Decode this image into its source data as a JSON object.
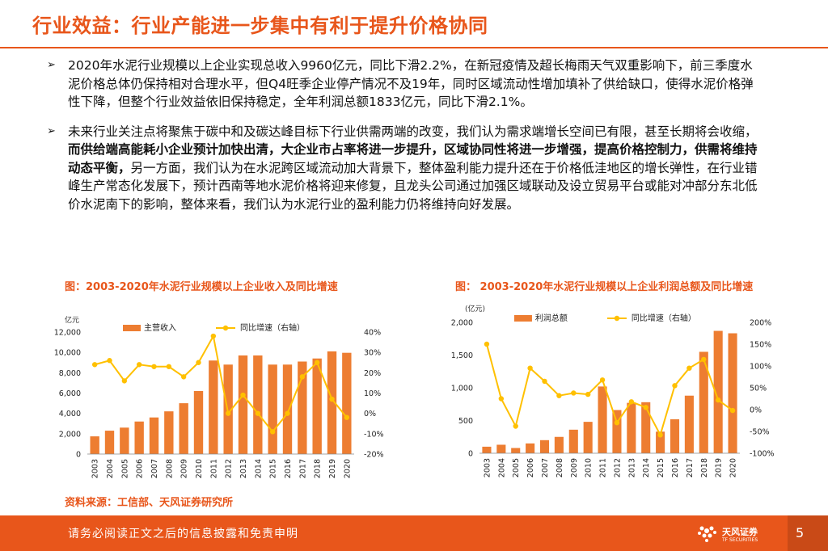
{
  "title": "行业效益：行业产能进一步集中有利于提升价格协同",
  "bullets": [
    {
      "text": "2020年水泥行业规模以上企业实现总收入9960亿元，同比下滑2.2%，在新冠疫情及超长梅雨天气双重影响下，前三季度水泥价格总体仍保持相对合理水平，但Q4旺季企业停产情况不及19年，同时区域流动性增加填补了供给缺口，使得水泥价格弹性下降，但整个行业效益依旧保持稳定，全年利润总额1833亿元，同比下滑2.1%。"
    },
    {
      "pre": "未来行业关注点将聚焦于碳中和及碳达峰目标下行业供需两端的改变，我们认为需求端增长空间已有限，甚至长期将会收缩，",
      "bold": "而供给端高能耗小企业预计加快出清，大企业市占率将进一步提升，区域协同性将进一步增强，提高价格控制力，供需将维持动态平衡，",
      "post": "另一方面，我们认为在水泥跨区域流动加大背景下，整体盈利能力提升还在于价格低洼地区的增长弹性，在行业错峰生产常态化发展下，预计西南等地水泥价格将迎来修复，且龙头公司通过加强区域联动及设立贸易平台或能对冲部分东北低价水泥南下的影响，整体来看，我们认为水泥行业的盈利能力仍将维持向好发展。"
    }
  ],
  "source": "资料来源：工信部、天风证券研究所",
  "footer": {
    "disclaimer": "请务必阅读正文之后的信息披露和免责申明",
    "logo_text": "天风证券",
    "logo_sub": "TF SECURITIES",
    "page": "5"
  },
  "colors": {
    "accent": "#E8561B",
    "bar": "#ED7D31",
    "line": "#FFC000"
  },
  "chart_data": [
    {
      "type": "bar+line",
      "title": "图：2003-2020年水泥行业规模以上企业收入及同比增速",
      "unit_label": "亿元",
      "categories": [
        "2003",
        "2004",
        "2005",
        "2006",
        "2007",
        "2008",
        "2009",
        "2010",
        "2011",
        "2012",
        "2013",
        "2014",
        "2015",
        "2016",
        "2017",
        "2018",
        "2019",
        "2020"
      ],
      "series": [
        {
          "name": "主营收入",
          "kind": "bar",
          "axis": "left",
          "values": [
            1740,
            2300,
            2600,
            3200,
            3600,
            4200,
            5000,
            6200,
            9200,
            8800,
            9700,
            9700,
            8800,
            8800,
            9100,
            9400,
            10100,
            9960
          ]
        },
        {
          "name": "同比增速（右轴）",
          "kind": "line",
          "axis": "right",
          "values": [
            24,
            26,
            16,
            24,
            23,
            23,
            18,
            25,
            38,
            0,
            9,
            0,
            -9,
            0,
            18,
            25,
            7,
            -2
          ]
        }
      ],
      "ylim": [
        0,
        12000
      ],
      "yticks": [
        0,
        2000,
        4000,
        6000,
        8000,
        10000,
        12000
      ],
      "ytick_labels": [
        "0",
        "2,000",
        "4,000",
        "6,000",
        "8,000",
        "10,000",
        "12,000"
      ],
      "y2lim": [
        -20,
        40
      ],
      "y2ticks": [
        -20,
        -10,
        0,
        10,
        20,
        30,
        40
      ],
      "y2tick_labels": [
        "-20%",
        "-10%",
        "0%",
        "10%",
        "20%",
        "30%",
        "40%"
      ]
    },
    {
      "type": "bar+line",
      "title": "图： 2003-2020年水泥行业规模以上企业利润总额及同比增速",
      "unit_label": "(亿元)",
      "categories": [
        "2003",
        "2004",
        "2005",
        "2006",
        "2007",
        "2008",
        "2009",
        "2010",
        "2011",
        "2012",
        "2013",
        "2014",
        "2015",
        "2016",
        "2017",
        "2018",
        "2019",
        "2020"
      ],
      "series": [
        {
          "name": "利润总额",
          "kind": "bar",
          "axis": "left",
          "values": [
            100,
            130,
            80,
            150,
            200,
            250,
            360,
            480,
            1020,
            660,
            770,
            780,
            330,
            520,
            880,
            1550,
            1870,
            1833
          ]
        },
        {
          "name": "同比增速（右轴）",
          "kind": "line",
          "axis": "right",
          "values": [
            150,
            25,
            -38,
            95,
            65,
            32,
            38,
            35,
            68,
            -30,
            18,
            5,
            -58,
            55,
            95,
            115,
            22,
            -2
          ]
        }
      ],
      "ylim": [
        0,
        2000
      ],
      "yticks": [
        0,
        500,
        1000,
        1500,
        2000
      ],
      "ytick_labels": [
        "0",
        "500",
        "1,000",
        "1,500",
        "2,000"
      ],
      "y2lim": [
        -100,
        200
      ],
      "y2ticks": [
        -100,
        -50,
        0,
        50,
        100,
        150,
        200
      ],
      "y2tick_labels": [
        "-100%",
        "-50%",
        "0%",
        "50%",
        "100%",
        "150%",
        "200%"
      ]
    }
  ]
}
